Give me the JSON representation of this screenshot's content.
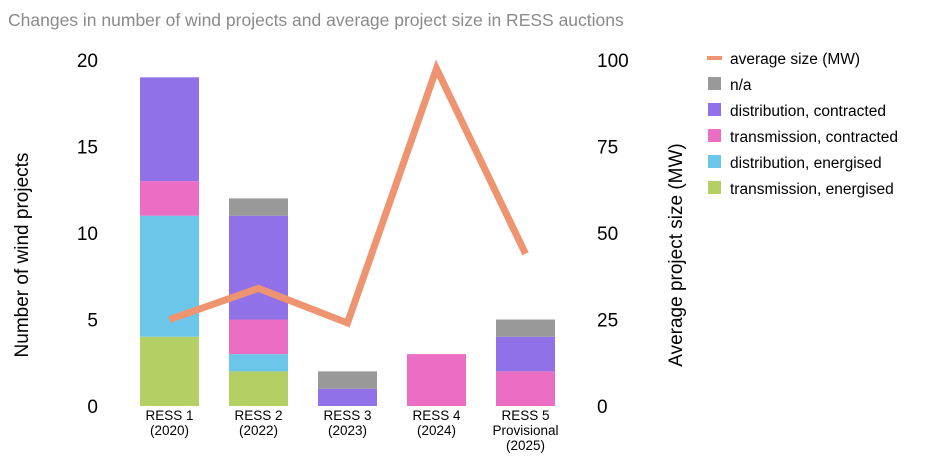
{
  "chart_data": {
    "type": "bar",
    "title": "Changes in number of wind projects and average project size in RESS auctions",
    "categories": [
      [
        "RESS 1",
        "(2020)"
      ],
      [
        "RESS 2",
        "(2022)"
      ],
      [
        "RESS 3",
        "(2023)"
      ],
      [
        "RESS 4",
        "(2024)"
      ],
      [
        "RESS 5",
        "Provisional",
        "(2025)"
      ]
    ],
    "ylabel": "Number of wind projects",
    "y2label": "Average project size (MW)",
    "ylim": [
      0,
      20
    ],
    "y2lim": [
      0,
      100
    ],
    "yticks": [
      0,
      5,
      10,
      15,
      20
    ],
    "y2ticks": [
      0,
      25,
      50,
      75,
      100
    ],
    "grid": false,
    "legend_placement": "right",
    "stacked": true,
    "series": [
      {
        "name": "transmission, energised",
        "color": "#b4d064",
        "values": [
          4,
          2,
          0,
          0,
          0
        ]
      },
      {
        "name": "distribution, energised",
        "color": "#6cc6ea",
        "values": [
          7,
          1,
          0,
          0,
          0
        ]
      },
      {
        "name": "transmission, contracted",
        "color": "#ec6ec4",
        "values": [
          2,
          2,
          0,
          3,
          2
        ]
      },
      {
        "name": "distribution, contracted",
        "color": "#9171e8",
        "values": [
          6,
          6,
          1,
          0,
          2
        ]
      },
      {
        "name": "n/a",
        "color": "#999999",
        "values": [
          0,
          1,
          1,
          0,
          1
        ]
      }
    ],
    "line_series": {
      "name": "average size (MW)",
      "color": "#ee9470",
      "axis": "right",
      "values": [
        25,
        34,
        24,
        97.5,
        44
      ]
    }
  }
}
